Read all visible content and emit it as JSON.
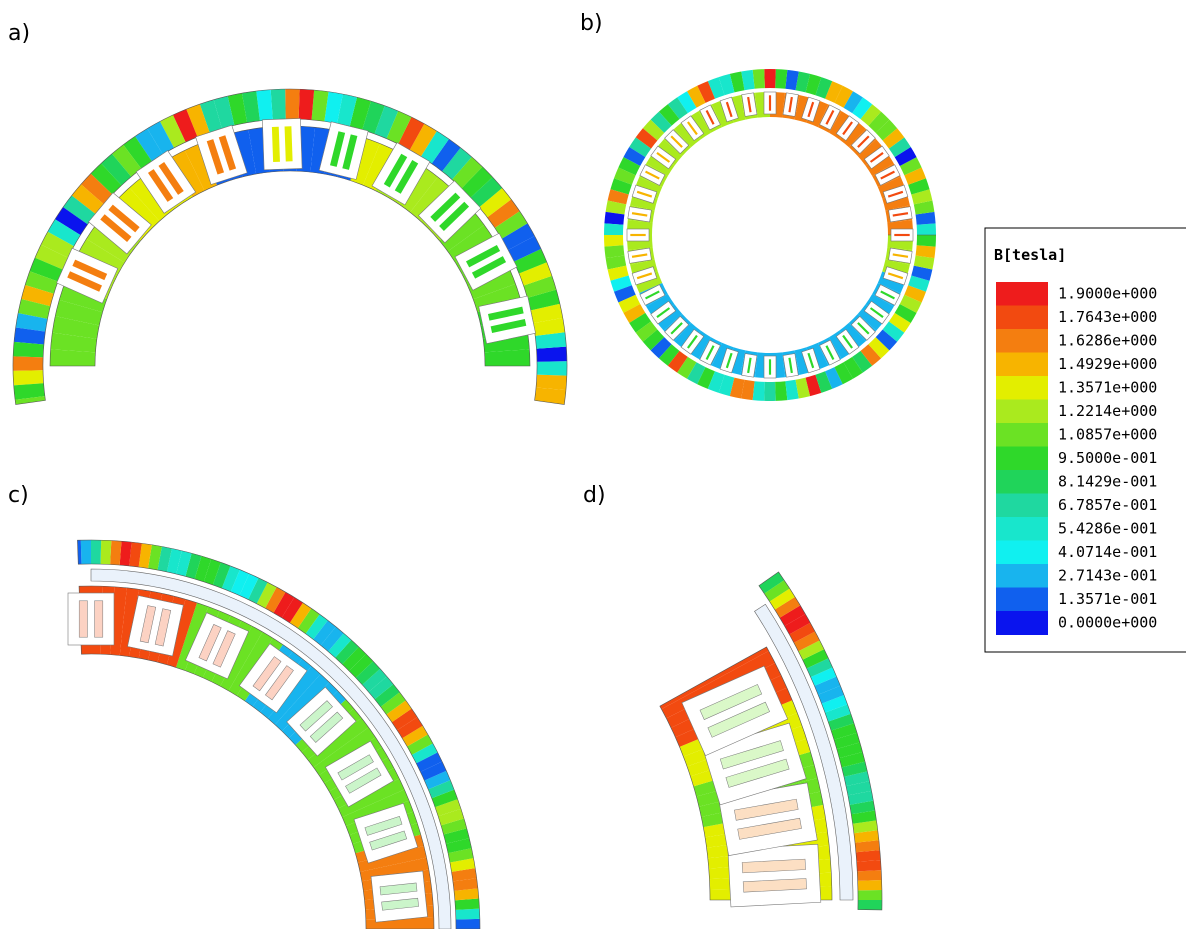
{
  "panels": {
    "a": "a)",
    "b": "b)",
    "c": "c)",
    "d": "d)"
  },
  "legend": {
    "title": "B[tesla]",
    "labels": [
      "1.9000e+000",
      "1.7643e+000",
      "1.6286e+000",
      "1.4929e+000",
      "1.3571e+000",
      "1.2214e+000",
      "1.0857e+000",
      "9.5000e-001",
      "8.1429e-001",
      "6.7857e-001",
      "5.4286e-001",
      "4.0714e-001",
      "2.7143e-001",
      "1.3571e-001",
      "0.0000e+000"
    ],
    "colors": [
      "#ee1c1c",
      "#f24a10",
      "#f47e10",
      "#f7b400",
      "#e3ee00",
      "#aaea1e",
      "#6be224",
      "#2fd82a",
      "#20d45a",
      "#1fd8a0",
      "#18e6cc",
      "#10f0f0",
      "#18b4ee",
      "#1060ee",
      "#0a14ee"
    ]
  }
}
